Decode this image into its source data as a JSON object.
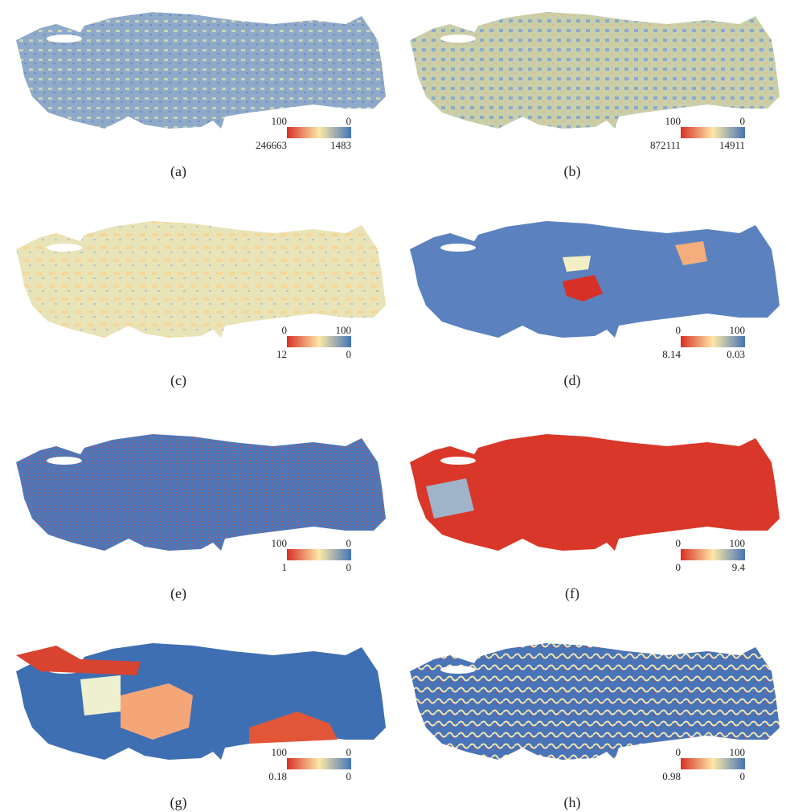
{
  "panels": [
    {
      "caption": "(a)",
      "legend": {
        "top_left": "100",
        "top_right": "0",
        "bottom_left": "246663",
        "bottom_right": "1483"
      }
    },
    {
      "caption": "(b)",
      "legend": {
        "top_left": "100",
        "top_right": "0",
        "bottom_left": "872111",
        "bottom_right": "14911"
      }
    },
    {
      "caption": "(c)",
      "legend": {
        "top_left": "0",
        "top_right": "100",
        "bottom_left": "12",
        "bottom_right": "0"
      }
    },
    {
      "caption": "(d)",
      "legend": {
        "top_left": "0",
        "top_right": "100",
        "bottom_left": "8.14",
        "bottom_right": "0.03"
      }
    },
    {
      "caption": "(e)",
      "legend": {
        "top_left": "100",
        "top_right": "0",
        "bottom_left": "1",
        "bottom_right": "0"
      }
    },
    {
      "caption": "(f)",
      "legend": {
        "top_left": "0",
        "top_right": "100",
        "bottom_left": "0",
        "bottom_right": "9.4"
      }
    },
    {
      "caption": "(g)",
      "legend": {
        "top_left": "100",
        "top_right": "0",
        "bottom_left": "0.18",
        "bottom_right": "0"
      }
    },
    {
      "caption": "(h)",
      "legend": {
        "top_left": "0",
        "top_right": "100",
        "bottom_left": "0.98",
        "bottom_right": "0"
      }
    }
  ]
}
